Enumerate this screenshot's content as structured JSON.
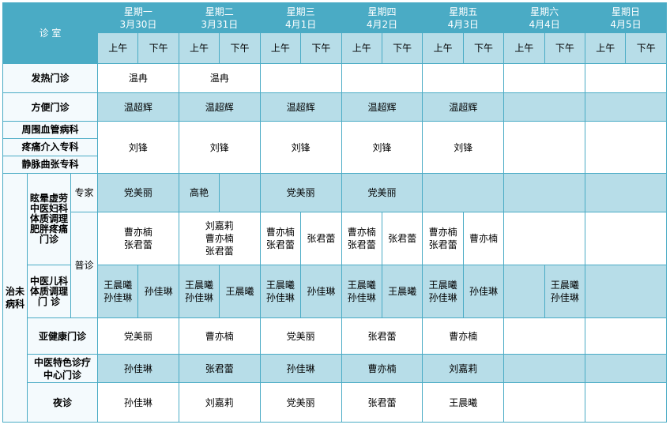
{
  "header": {
    "room_label": "诊  室",
    "days": [
      {
        "weekday": "星期一",
        "date": "3月30日"
      },
      {
        "weekday": "星期二",
        "date": "3月31日"
      },
      {
        "weekday": "星期三",
        "date": "4月1日"
      },
      {
        "weekday": "星期四",
        "date": "4月2日"
      },
      {
        "weekday": "星期五",
        "date": "4月3日"
      },
      {
        "weekday": "星期六",
        "date": "4月4日"
      },
      {
        "weekday": "星期日",
        "date": "4月5日"
      }
    ],
    "am": "上午",
    "pm": "下午"
  },
  "colors": {
    "header": "#4aabc5",
    "row_blue": "#b7dde8",
    "border": "#4aabc5"
  },
  "rows": [
    {
      "name": "fever-clinic",
      "bg": "white",
      "h": 37,
      "left": [
        {
          "text": "发热门诊",
          "colspan": 3
        }
      ],
      "cells": [
        {
          "text": "温冉",
          "span": 2
        },
        {
          "text": "温冉",
          "span": 2
        },
        {
          "text": "",
          "span": 2
        },
        {
          "text": "",
          "span": 2
        },
        {
          "text": "",
          "span": 2
        },
        {
          "text": "",
          "span": 2
        },
        {
          "text": "",
          "span": 2
        }
      ]
    },
    {
      "name": "convenience-clinic",
      "bg": "blue",
      "h": 36,
      "left": [
        {
          "text": "方便门诊",
          "colspan": 3
        }
      ],
      "cells": [
        {
          "text": "温超辉",
          "span": 2
        },
        {
          "text": "温超辉",
          "span": 2
        },
        {
          "text": "温超辉",
          "span": 2
        },
        {
          "text": "温超辉",
          "span": 2
        },
        {
          "text": "温超辉",
          "span": 2
        },
        {
          "text": "",
          "span": 2
        },
        {
          "text": "",
          "span": 2
        }
      ]
    },
    {
      "name": "vascular-clinic",
      "bg": "white",
      "h": 64,
      "left": [
        {
          "stack": [
            "周围血管病科",
            "疼痛介入专科",
            "静脉曲张专科"
          ],
          "colspan": 3
        }
      ],
      "cells": [
        {
          "text": "刘锋",
          "span": 2
        },
        {
          "text": "刘锋",
          "span": 2
        },
        {
          "text": "刘锋",
          "span": 2
        },
        {
          "text": "刘锋",
          "span": 2
        },
        {
          "text": "刘锋",
          "span": 2
        },
        {
          "text": "",
          "span": 2
        },
        {
          "text": "",
          "span": 2
        }
      ]
    },
    {
      "name": "expert-row",
      "bg": "blue",
      "h": 49,
      "left": [
        {
          "text": "治未\n病科",
          "rowspan": 6
        },
        {
          "text": "眩晕虚劳\n中医妇科\n体质调理\n肥胖疼痛\n门诊",
          "rowspan": 2,
          "tight": true
        },
        {
          "text": "专家",
          "plain": true
        }
      ],
      "cells": [
        {
          "text": "党美丽",
          "span": 2
        },
        {
          "text": "高艳",
          "span": 1
        },
        {
          "text": "",
          "span": 1
        },
        {
          "text": "党美丽",
          "span": 2
        },
        {
          "text": "党美丽",
          "span": 2
        },
        {
          "text": "",
          "span": 2
        },
        {
          "text": "",
          "span": 2
        },
        {
          "text": "",
          "span": 2
        }
      ]
    },
    {
      "name": "general-row",
      "bg": "white",
      "h": 67,
      "left": [
        {
          "text": "普诊",
          "rowspan": 2,
          "plain": true
        }
      ],
      "cells": [
        {
          "text": "曹亦楠\n张君蕾",
          "span": 2
        },
        {
          "text": "刘嘉莉\n曹亦楠\n张君蕾",
          "span": 2
        },
        {
          "text": "曹亦楠\n张君蕾",
          "span": 1
        },
        {
          "text": "张君蕾",
          "span": 1
        },
        {
          "text": "曹亦楠\n张君蕾",
          "span": 1
        },
        {
          "text": "张君蕾",
          "span": 1
        },
        {
          "text": "曹亦楠\n张君蕾",
          "span": 1
        },
        {
          "text": "曹亦楠",
          "span": 1
        },
        {
          "text": "",
          "span": 2
        },
        {
          "text": "",
          "span": 2
        }
      ]
    },
    {
      "name": "pediatric-row",
      "bg": "blue",
      "h": 67,
      "left": [
        {
          "text": "中医儿科\n体质调理\n门 诊",
          "tight": true
        }
      ],
      "cells": [
        {
          "text": "王晨曦\n孙佳琳",
          "span": 1
        },
        {
          "text": "孙佳琳",
          "span": 1
        },
        {
          "text": "王晨曦\n孙佳琳",
          "span": 1
        },
        {
          "text": "王晨曦",
          "span": 1
        },
        {
          "text": "王晨曦\n孙佳琳",
          "span": 1
        },
        {
          "text": "孙佳琳",
          "span": 1
        },
        {
          "text": "王晨曦\n孙佳琳",
          "span": 1
        },
        {
          "text": "王晨曦",
          "span": 1
        },
        {
          "text": "王晨曦\n孙佳琳",
          "span": 1
        },
        {
          "text": "孙佳琳",
          "span": 1
        },
        {
          "text": "",
          "span": 1
        },
        {
          "text": "王晨曦\n孙佳琳",
          "span": 1
        },
        {
          "text": "",
          "span": 2
        }
      ]
    },
    {
      "name": "subhealth-row",
      "bg": "white",
      "h": 46,
      "left": [
        {
          "text": "亚健康门诊",
          "colspan": 2
        }
      ],
      "cells": [
        {
          "text": "党美丽",
          "span": 2
        },
        {
          "text": "曹亦楠",
          "span": 2
        },
        {
          "text": "党美丽",
          "span": 2
        },
        {
          "text": "张君蕾",
          "span": 2
        },
        {
          "text": "曹亦楠",
          "span": 2
        },
        {
          "text": "",
          "span": 2
        },
        {
          "text": "",
          "span": 2
        }
      ]
    },
    {
      "name": "tcm-special-row",
      "bg": "blue",
      "h": 36,
      "left": [
        {
          "text": "中医特色诊疗\n中心门诊",
          "colspan": 2
        }
      ],
      "cells": [
        {
          "text": "孙佳琳",
          "span": 2
        },
        {
          "text": "张君蕾",
          "span": 2
        },
        {
          "text": "孙佳琳",
          "span": 2
        },
        {
          "text": "曹亦楠",
          "span": 2
        },
        {
          "text": "刘嘉莉",
          "span": 2
        },
        {
          "text": "",
          "span": 2
        },
        {
          "text": "",
          "span": 2
        }
      ]
    },
    {
      "name": "night-clinic-row",
      "bg": "white",
      "h": 50,
      "left": [
        {
          "text": "夜诊",
          "colspan": 2
        }
      ],
      "cells": [
        {
          "text": "孙佳琳",
          "span": 2
        },
        {
          "text": "刘嘉莉",
          "span": 2
        },
        {
          "text": "党美丽",
          "span": 2
        },
        {
          "text": "张君蕾",
          "span": 2
        },
        {
          "text": "王晨曦",
          "span": 2
        },
        {
          "text": "",
          "span": 2
        },
        {
          "text": "",
          "span": 2
        }
      ]
    }
  ]
}
